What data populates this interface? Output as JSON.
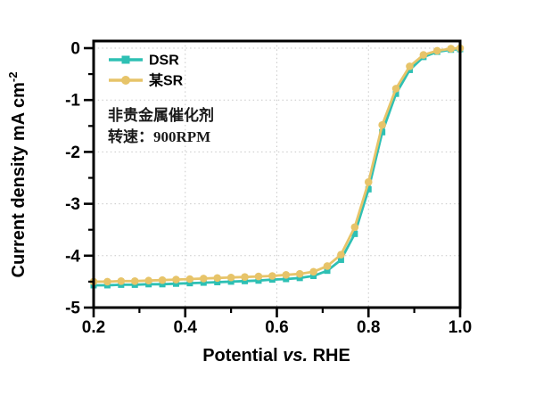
{
  "chart": {
    "x_axis_title": {
      "pre": "Potential ",
      "italic": "vs.",
      "post": " RHE"
    },
    "y_axis_title": {
      "main": "Current density mA cm",
      "superscript": "-2"
    },
    "colors": {
      "dsr_teal": "#2ec0b4",
      "sr_gold": "#e7c469",
      "grid": "#c8c8c8",
      "axis": "#000000"
    }
  },
  "chart_data": {
    "type": "line",
    "title": "",
    "xlabel": "Potential vs. RHE",
    "ylabel": "Current density mA cm-2",
    "xlim": [
      0.2,
      1.0
    ],
    "ylim": [
      -5,
      0.15
    ],
    "grid": true,
    "legend_position": "top-left-inside",
    "x_ticks": [
      0.2,
      0.4,
      0.6,
      0.8,
      1.0
    ],
    "x_tick_labels": [
      "0.2",
      "0.4",
      "0.6",
      "0.8",
      "1.0"
    ],
    "y_ticks": [
      0,
      -1,
      -2,
      -3,
      -4,
      -5
    ],
    "y_tick_labels": [
      "0",
      "-1",
      "-2",
      "-3",
      "-4",
      "-5"
    ],
    "annotations": [
      "非贵金属催化剂",
      "转速：900RPM"
    ],
    "x": [
      0.2,
      0.23,
      0.26,
      0.29,
      0.32,
      0.35,
      0.38,
      0.41,
      0.44,
      0.47,
      0.5,
      0.53,
      0.56,
      0.59,
      0.62,
      0.65,
      0.68,
      0.71,
      0.74,
      0.77,
      0.8,
      0.83,
      0.86,
      0.89,
      0.92,
      0.95,
      0.98,
      1.0
    ],
    "series": [
      {
        "name": "DSR",
        "color": "#2ec0b4",
        "marker": "square",
        "values": [
          -4.57,
          -4.57,
          -4.56,
          -4.56,
          -4.55,
          -4.55,
          -4.54,
          -4.53,
          -4.52,
          -4.51,
          -4.5,
          -4.49,
          -4.48,
          -4.46,
          -4.45,
          -4.43,
          -4.39,
          -4.29,
          -4.08,
          -3.58,
          -2.72,
          -1.62,
          -0.88,
          -0.42,
          -0.17,
          -0.07,
          -0.03,
          -0.02
        ]
      },
      {
        "name": "某SR",
        "color": "#e7c469",
        "marker": "circle",
        "values": [
          -4.5,
          -4.5,
          -4.49,
          -4.49,
          -4.48,
          -4.47,
          -4.46,
          -4.45,
          -4.44,
          -4.43,
          -4.42,
          -4.41,
          -4.4,
          -4.39,
          -4.37,
          -4.35,
          -4.31,
          -4.2,
          -3.98,
          -3.45,
          -2.58,
          -1.48,
          -0.78,
          -0.35,
          -0.13,
          -0.05,
          -0.01,
          0.0
        ]
      }
    ]
  }
}
